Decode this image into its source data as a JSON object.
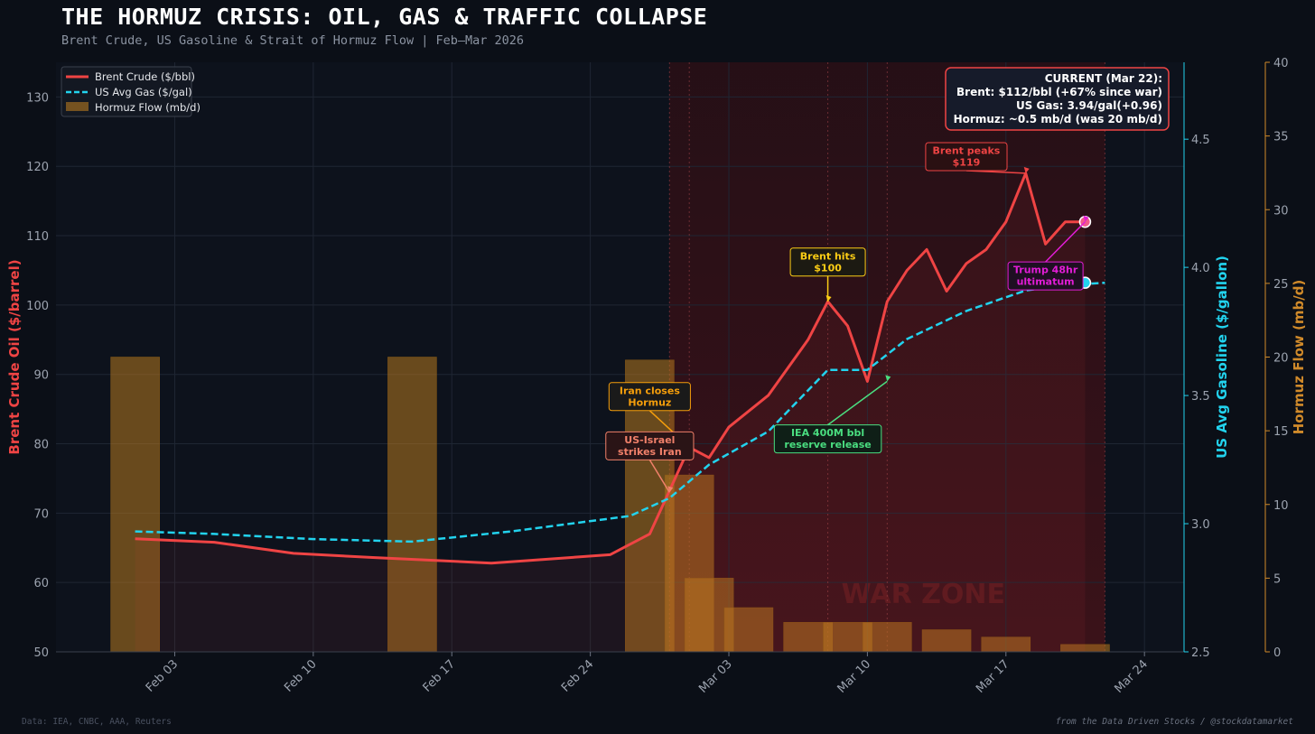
{
  "header": {
    "title": "THE HORMUZ CRISIS: OIL, GAS & TRAFFIC COLLAPSE",
    "subtitle": "Brent Crude, US Gasoline & Strait of Hormuz Flow | Feb–Mar 2026"
  },
  "footer": {
    "source": "Data: IEA, CNBC, AAA, Reuters",
    "credit": "from the Data Driven Stocks / @stockdatamarket"
  },
  "colors": {
    "background": "#0b0f17",
    "brent": "#ef4444",
    "gas": "#22d3ee",
    "hormuz": "#b7791f",
    "war_zone": "#7f1d1d",
    "grid": "#1f2633",
    "tick_text": "#9ca3af"
  },
  "chart_data": {
    "type": "line",
    "x_axis": {
      "kind": "date",
      "range": [
        "2026-01-28",
        "2026-03-26"
      ],
      "ticks": [
        {
          "date": "2026-02-03",
          "label": "Feb 03"
        },
        {
          "date": "2026-02-10",
          "label": "Feb 10"
        },
        {
          "date": "2026-02-17",
          "label": "Feb 17"
        },
        {
          "date": "2026-02-24",
          "label": "Feb 24"
        },
        {
          "date": "2026-03-03",
          "label": "Mar 03"
        },
        {
          "date": "2026-03-10",
          "label": "Mar 10"
        },
        {
          "date": "2026-03-17",
          "label": "Mar 17"
        },
        {
          "date": "2026-03-24",
          "label": "Mar 24"
        }
      ]
    },
    "y_left": {
      "label": "Brent Crude Oil ($/barrel)",
      "range": [
        50,
        135
      ],
      "ticks": [
        50,
        60,
        70,
        80,
        90,
        100,
        110,
        120,
        130
      ]
    },
    "y_right_gas": {
      "label": "US Avg Gasoline ($/gallon)",
      "range": [
        2.5,
        4.8
      ],
      "ticks": [
        2.5,
        3.0,
        3.5,
        4.0,
        4.5
      ]
    },
    "y_right_flow": {
      "label": "Hormuz Flow (mb/d)",
      "range": [
        0,
        40
      ],
      "ticks": [
        0,
        5,
        10,
        15,
        20,
        25,
        30,
        35,
        40
      ]
    },
    "grid": true,
    "legend": {
      "placement": "top-left",
      "entries": [
        "Brent Crude ($/bbl)",
        "US Avg Gas ($/gal)",
        "Hormuz Flow (mb/d)"
      ]
    },
    "war_zone": {
      "start": "2026-02-28",
      "end": "2026-03-22",
      "label": "WAR ZONE"
    },
    "event_lines": [
      "2026-02-28",
      "2026-03-01",
      "2026-03-08",
      "2026-03-11",
      "2026-03-22"
    ],
    "series": [
      {
        "name": "Brent Crude ($/bbl)",
        "axis": "left",
        "style": "solid",
        "points": [
          [
            "2026-02-01",
            66.3
          ],
          [
            "2026-02-05",
            65.8
          ],
          [
            "2026-02-09",
            64.2
          ],
          [
            "2026-02-13",
            63.6
          ],
          [
            "2026-02-19",
            62.8
          ],
          [
            "2026-02-25",
            64.0
          ],
          [
            "2026-02-27",
            67.0
          ],
          [
            "2026-03-01",
            79.5
          ],
          [
            "2026-03-02",
            78.0
          ],
          [
            "2026-03-03",
            82.4
          ],
          [
            "2026-03-05",
            87.0
          ],
          [
            "2026-03-07",
            95.0
          ],
          [
            "2026-03-08",
            100.5
          ],
          [
            "2026-03-09",
            97.0
          ],
          [
            "2026-03-10",
            89.0
          ],
          [
            "2026-03-11",
            100.5
          ],
          [
            "2026-03-12",
            105.0
          ],
          [
            "2026-03-13",
            108.0
          ],
          [
            "2026-03-14",
            102.0
          ],
          [
            "2026-03-15",
            106.0
          ],
          [
            "2026-03-16",
            108.0
          ],
          [
            "2026-03-17",
            112.0
          ],
          [
            "2026-03-18",
            119.0
          ],
          [
            "2026-03-19",
            108.8
          ],
          [
            "2026-03-20",
            112.0
          ],
          [
            "2026-03-21",
            112.0
          ]
        ]
      },
      {
        "name": "US Avg Gas ($/gal)",
        "axis": "gas",
        "style": "dashed",
        "points": [
          [
            "2026-02-01",
            2.97
          ],
          [
            "2026-02-05",
            2.96
          ],
          [
            "2026-02-10",
            2.94
          ],
          [
            "2026-02-15",
            2.93
          ],
          [
            "2026-02-20",
            2.97
          ],
          [
            "2026-02-26",
            3.03
          ],
          [
            "2026-02-28",
            3.1
          ],
          [
            "2026-03-02",
            3.23
          ],
          [
            "2026-03-05",
            3.36
          ],
          [
            "2026-03-08",
            3.6
          ],
          [
            "2026-03-10",
            3.6
          ],
          [
            "2026-03-12",
            3.72
          ],
          [
            "2026-03-15",
            3.83
          ],
          [
            "2026-03-18",
            3.91
          ],
          [
            "2026-03-20",
            3.93
          ],
          [
            "2026-03-22",
            3.94
          ]
        ]
      },
      {
        "name": "Hormuz Flow (mb/d)",
        "axis": "flow",
        "style": "bar",
        "points": [
          [
            "2026-02-01",
            20.0
          ],
          [
            "2026-02-15",
            20.0
          ],
          [
            "2026-02-27",
            19.8
          ],
          [
            "2026-03-01",
            12.0
          ],
          [
            "2026-03-02",
            5.0
          ],
          [
            "2026-03-04",
            3.0
          ],
          [
            "2026-03-07",
            2.0
          ],
          [
            "2026-03-09",
            2.0
          ],
          [
            "2026-03-11",
            2.0
          ],
          [
            "2026-03-14",
            1.5
          ],
          [
            "2026-03-17",
            1.0
          ],
          [
            "2026-03-21",
            0.5
          ]
        ]
      }
    ],
    "annotations": [
      {
        "text": [
          "Iran closes",
          "Hormuz"
        ],
        "color": "#f59e0b",
        "bg": "#1a1a1a",
        "at": [
          "2026-02-27",
          86.8
        ],
        "target": [
          "2026-03-01",
          79.5
        ]
      },
      {
        "text": [
          "US-Israel",
          "strikes Iran"
        ],
        "color": "#f0806a",
        "bg": "#2a1416",
        "at": [
          "2026-02-27",
          79.7
        ],
        "target": [
          "2026-02-28",
          73.0
        ]
      },
      {
        "text": [
          "Brent hits",
          "$100"
        ],
        "color": "#facc15",
        "bg": "#1c1a12",
        "at": [
          "2026-03-08",
          106.2
        ],
        "target": [
          "2026-03-08",
          100.5
        ]
      },
      {
        "text": [
          "IEA 400M bbl",
          "reserve release"
        ],
        "color": "#4ade80",
        "bg": "#0f1f17",
        "at": [
          "2026-03-08",
          80.7
        ],
        "target": [
          "2026-03-11",
          89.0
        ]
      },
      {
        "text": [
          "Brent peaks",
          "$119"
        ],
        "color": "#ef4444",
        "bg": "#2a1012",
        "at": [
          "2026-03-15",
          121.4
        ],
        "target": [
          "2026-03-18",
          119.0
        ]
      },
      {
        "text": [
          "Trump 48hr",
          "ultimatum"
        ],
        "color": "#e11dd6",
        "bg": "#1e0f22",
        "at": [
          "2026-03-19",
          104.2
        ],
        "target": [
          "2026-03-21",
          112.0
        ]
      }
    ],
    "current_box": {
      "lines": [
        "CURRENT (Mar 22):",
        "Brent: $112/bbl (+67% since war)",
        "US Gas: 3.94/gal(+0.96)",
        "Hormuz: ~0.5 mb/d (was 20 mb/d)"
      ]
    },
    "end_markers": {
      "brent": [
        "2026-03-21",
        112.0
      ],
      "gas": [
        "2026-03-21",
        3.94
      ]
    }
  }
}
